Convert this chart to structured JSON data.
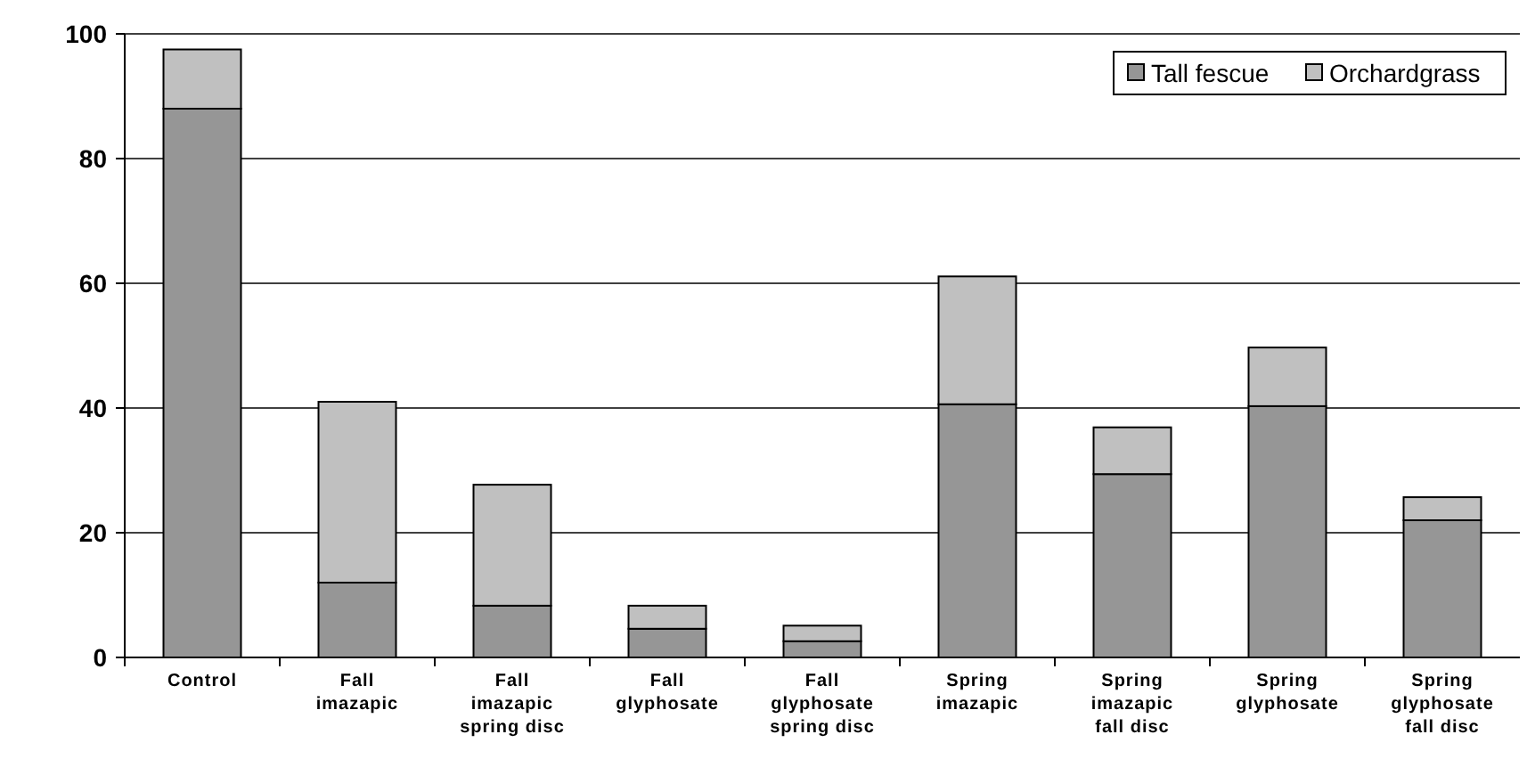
{
  "chart_data": {
    "type": "bar",
    "stacked": true,
    "categories": [
      "Control",
      "Fall imazapic",
      "Fall imazapic spring disc",
      "Fall glyphosate",
      "Fall glyphosate spring disc",
      "Spring imazapic",
      "Spring imazapic fall disc",
      "Spring glyphosate",
      "Spring glyphosate fall disc"
    ],
    "series": [
      {
        "name": "Tall fescue",
        "color": "#969696",
        "values": [
          88,
          12,
          8.3,
          4.6,
          2.6,
          40.6,
          29.4,
          40.3,
          22
        ]
      },
      {
        "name": "Orchardgrass",
        "color": "#c0c0c0",
        "values": [
          9.5,
          29,
          19.4,
          3.7,
          2.5,
          20.5,
          7.5,
          9.4,
          3.7
        ]
      }
    ],
    "ylim": [
      0,
      100
    ],
    "yticks": [
      0,
      20,
      40,
      60,
      80,
      100
    ],
    "grid": "y",
    "legend": "top right"
  }
}
